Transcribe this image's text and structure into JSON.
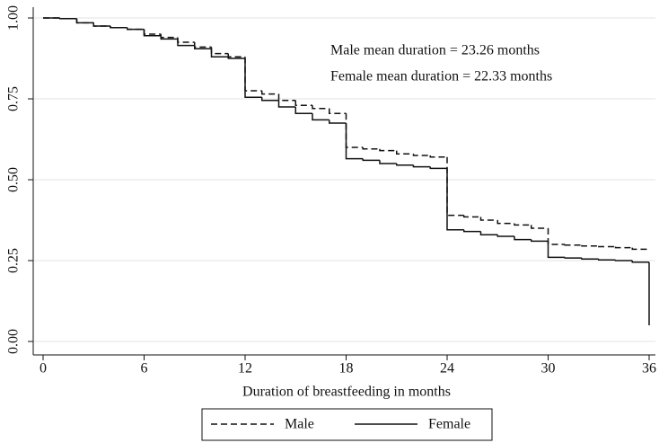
{
  "chart_data": {
    "type": "step",
    "xlabel": "Duration of breastfeeding in months",
    "annotations": [
      "Male mean duration = 23.26 months",
      "Female mean duration = 22.33 months"
    ],
    "x": [
      0,
      1,
      2,
      3,
      4,
      5,
      6,
      7,
      8,
      9,
      10,
      11,
      12,
      13,
      14,
      15,
      16,
      17,
      18,
      19,
      20,
      21,
      22,
      23,
      24,
      25,
      26,
      27,
      28,
      29,
      30,
      31,
      32,
      33,
      34,
      35,
      36
    ],
    "series": [
      {
        "name": "Male",
        "color": "#111111",
        "dash": true,
        "values": [
          1.0,
          0.998,
          0.985,
          0.975,
          0.97,
          0.965,
          0.95,
          0.94,
          0.925,
          0.91,
          0.89,
          0.88,
          0.775,
          0.765,
          0.745,
          0.73,
          0.72,
          0.705,
          0.6,
          0.595,
          0.59,
          0.58,
          0.575,
          0.57,
          0.39,
          0.385,
          0.375,
          0.365,
          0.36,
          0.35,
          0.3,
          0.298,
          0.295,
          0.293,
          0.29,
          0.285,
          0.285
        ]
      },
      {
        "name": "Female",
        "color": "#111111",
        "dash": false,
        "values": [
          1.0,
          0.998,
          0.985,
          0.975,
          0.97,
          0.965,
          0.945,
          0.935,
          0.915,
          0.905,
          0.88,
          0.875,
          0.755,
          0.745,
          0.725,
          0.705,
          0.685,
          0.675,
          0.565,
          0.56,
          0.55,
          0.545,
          0.54,
          0.535,
          0.345,
          0.34,
          0.33,
          0.325,
          0.315,
          0.31,
          0.26,
          0.258,
          0.255,
          0.252,
          0.25,
          0.245,
          0.05
        ]
      }
    ],
    "xlim": [
      0,
      36
    ],
    "xticks": [
      0,
      6,
      12,
      18,
      24,
      30,
      36
    ],
    "ylim": [
      0,
      1
    ],
    "yticks": [
      {
        "value": 0,
        "label": "0.00"
      },
      {
        "value": 0.25,
        "label": "0.25"
      },
      {
        "value": 0.5,
        "label": "0.50"
      },
      {
        "value": 0.75,
        "label": "0.75"
      },
      {
        "value": 1,
        "label": "1.00"
      }
    ],
    "grid": true
  }
}
